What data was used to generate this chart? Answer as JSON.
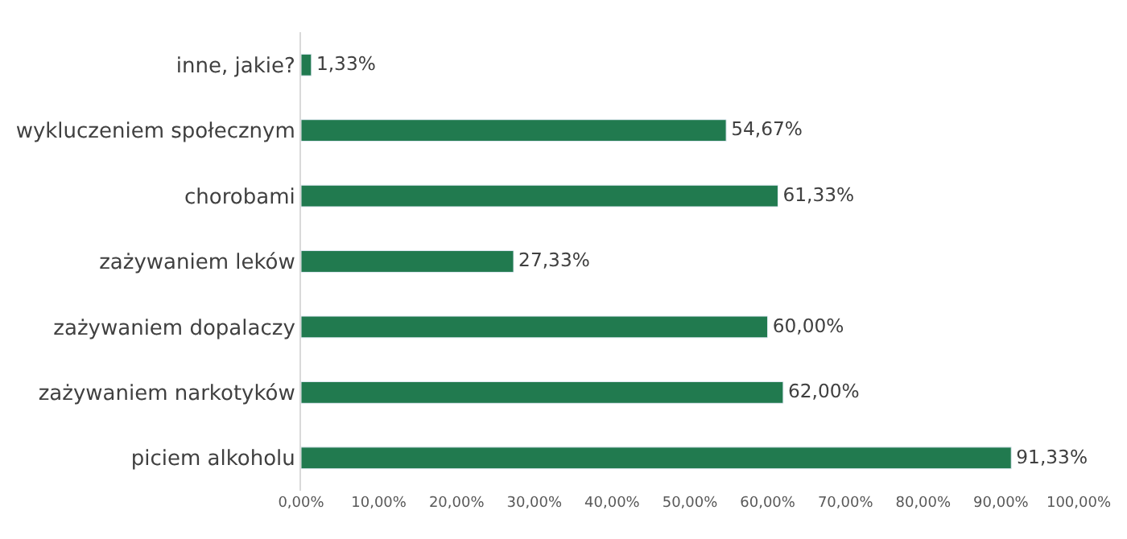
{
  "chart_data": {
    "type": "bar",
    "orientation": "horizontal",
    "categories": [
      "inne, jakie?",
      "wykluczeniem społecznym",
      "chorobami",
      "zażywaniem leków",
      "zażywaniem dopalaczy",
      "zażywaniem narkotyków",
      "piciem alkoholu"
    ],
    "values": [
      1.33,
      54.67,
      61.33,
      27.33,
      60.0,
      62.0,
      91.33
    ],
    "value_labels": [
      "1,33%",
      "54,67%",
      "61,33%",
      "27,33%",
      "60,00%",
      "62,00%",
      "91,33%"
    ],
    "color": "#217a4f",
    "xlim": [
      0,
      100
    ],
    "xticks": [
      {
        "value": 0,
        "label": "0,00%"
      },
      {
        "value": 10,
        "label": "10,00%"
      },
      {
        "value": 20,
        "label": "20,00%"
      },
      {
        "value": 30,
        "label": "30,00%"
      },
      {
        "value": 40,
        "label": "40,00%"
      },
      {
        "value": 50,
        "label": "50,00%"
      },
      {
        "value": 60,
        "label": "60,00%"
      },
      {
        "value": 70,
        "label": "70,00%"
      },
      {
        "value": 80,
        "label": "80,00%"
      },
      {
        "value": 90,
        "label": "90,00%"
      },
      {
        "value": 100,
        "label": "100,00%"
      }
    ],
    "legend": false
  }
}
